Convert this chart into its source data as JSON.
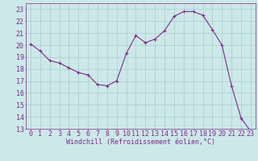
{
  "x": [
    0,
    1,
    2,
    3,
    4,
    5,
    6,
    7,
    8,
    9,
    10,
    11,
    12,
    13,
    14,
    15,
    16,
    17,
    18,
    19,
    20,
    21,
    22,
    23
  ],
  "y": [
    20.1,
    19.5,
    18.7,
    18.5,
    18.1,
    17.7,
    17.5,
    16.7,
    16.6,
    17.0,
    19.3,
    20.8,
    20.2,
    20.5,
    21.2,
    22.4,
    22.8,
    22.8,
    22.5,
    21.3,
    20.0,
    16.6,
    13.9,
    12.8
  ],
  "color": "#7b2d8b",
  "bg_color": "#cce8e8",
  "grid_color": "#aacccc",
  "xlabel": "Windchill (Refroidissement éolien,°C)",
  "ylim": [
    13,
    23.5
  ],
  "xlim": [
    -0.5,
    23.5
  ],
  "yticks": [
    13,
    14,
    15,
    16,
    17,
    18,
    19,
    20,
    21,
    22,
    23
  ],
  "xticks": [
    0,
    1,
    2,
    3,
    4,
    5,
    6,
    7,
    8,
    9,
    10,
    11,
    12,
    13,
    14,
    15,
    16,
    17,
    18,
    19,
    20,
    21,
    22,
    23
  ],
  "axis_fontsize": 6,
  "tick_fontsize": 6
}
